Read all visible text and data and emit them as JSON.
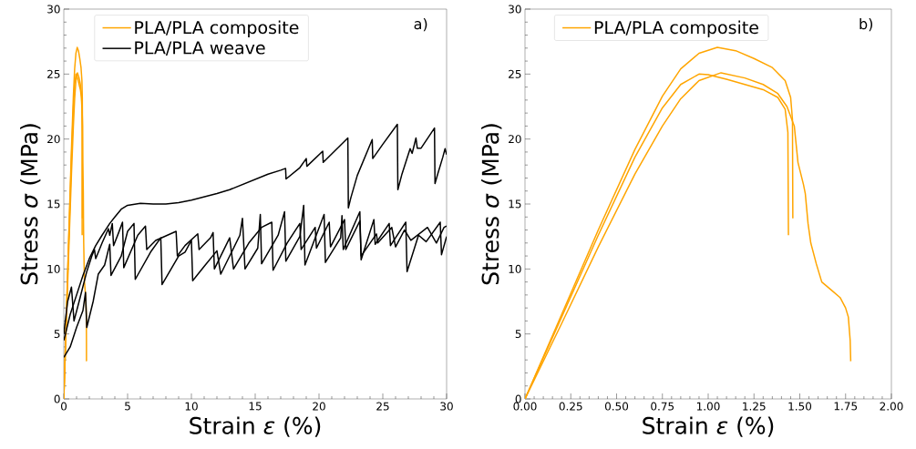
{
  "chart_data": [
    {
      "type": "line",
      "xlabel": "Strain *ε* (%)",
      "ylabel": "Stress *σ* (MPa)",
      "annotations": [
        "a)"
      ],
      "legend": "top left",
      "xlim": [
        0,
        30
      ],
      "ylim": [
        0,
        30
      ],
      "xticks": [
        0,
        5,
        10,
        15,
        20,
        25,
        30
      ],
      "yticks": [
        0,
        5,
        10,
        15,
        20,
        25,
        30
      ],
      "series": [
        {
          "name": "PLA/PLA composite",
          "color": "#ffa500",
          "x": [
            0,
            0.2,
            0.4,
            0.6,
            0.75,
            0.85,
            0.95,
            1.05,
            1.15,
            1.25,
            1.35,
            1.42,
            1.45,
            1.46,
            1.462
          ],
          "values": [
            0,
            6.5,
            13.0,
            19.2,
            23.3,
            25.4,
            26.6,
            27.05,
            26.8,
            26.2,
            25.5,
            24.5,
            23.2,
            21.5,
            13.9
          ]
        },
        {
          "color": "#ffa500",
          "x": [
            0,
            0.2,
            0.4,
            0.6,
            0.75,
            0.85,
            0.95,
            1.0,
            1.1,
            1.2,
            1.3,
            1.38,
            1.42,
            1.435,
            1.438
          ],
          "values": [
            0,
            6.3,
            12.6,
            18.6,
            22.4,
            24.2,
            25.0,
            24.95,
            24.6,
            24.2,
            23.8,
            23.2,
            22.3,
            20.5,
            12.6
          ]
        },
        {
          "color": "#ffa500",
          "x": [
            0,
            0.2,
            0.4,
            0.6,
            0.75,
            0.85,
            0.95,
            1.07,
            1.2,
            1.3,
            1.38,
            1.43,
            1.47,
            1.49,
            1.52,
            1.53,
            1.545,
            1.56,
            1.59,
            1.62,
            1.67,
            1.72,
            1.75,
            1.765,
            1.775,
            1.778
          ],
          "values": [
            0,
            5.8,
            11.7,
            17.3,
            21.0,
            23.1,
            24.5,
            25.1,
            24.7,
            24.2,
            23.5,
            22.5,
            21.0,
            18.2,
            16.5,
            15.8,
            13.5,
            12.0,
            10.4,
            9.0,
            8.4,
            7.8,
            7.0,
            6.3,
            4.5,
            2.9
          ]
        },
        {
          "name": "PLA/PLA weave",
          "color": "#000000",
          "x": [
            0,
            0.5,
            1,
            1.5,
            2,
            2.5,
            3,
            3.6,
            4,
            4.5,
            5,
            6,
            7,
            8,
            9,
            10,
            11,
            12,
            13,
            14,
            15,
            16,
            17,
            17.38,
            17.42,
            18.5,
            19.0,
            19.05,
            20.29,
            20.33,
            22.26,
            22.3,
            22.5,
            23,
            24.17,
            24.21,
            25,
            26.14,
            26.18,
            26.5,
            27.14,
            27.3,
            27.6,
            27.7,
            28,
            29.05,
            29.09,
            29.3,
            29.7,
            29.88,
            30
          ],
          "values": [
            4.5,
            6.5,
            8.0,
            9.5,
            10.8,
            11.8,
            12.6,
            13.5,
            14.0,
            14.6,
            14.9,
            15.05,
            15.0,
            15.0,
            15.1,
            15.3,
            15.55,
            15.8,
            16.1,
            16.5,
            16.9,
            17.3,
            17.6,
            17.74,
            16.93,
            17.8,
            18.5,
            17.9,
            19.07,
            18.2,
            20.08,
            14.7,
            15.5,
            17.2,
            19.96,
            18.5,
            19.6,
            21.13,
            16.1,
            17.3,
            19.26,
            18.9,
            20.08,
            19.3,
            19.3,
            20.85,
            16.58,
            17.3,
            18.6,
            19.26,
            18.8
          ]
        },
        {
          "color": "#000000",
          "x": [
            0,
            0.5,
            1,
            1.5,
            1.7,
            1.8,
            2.3,
            2.7,
            3.2,
            3.6,
            3.7,
            4.5,
            5.0,
            5.5,
            5.6,
            6.8,
            7.6,
            7.7,
            9.0,
            9.5,
            10.0,
            10.1,
            11.0,
            12.0,
            12.3,
            13.8,
            14.0,
            14.2,
            15.2,
            15.4,
            15.5,
            16.8,
            17.3,
            17.4,
            18.5,
            18.8,
            18.9,
            20.4,
            20.5,
            21.7,
            21.8,
            21.9,
            23.2,
            23.3,
            24.3,
            24.4,
            25.5,
            25.6,
            26.8,
            26.9,
            27.8,
            28.4,
            29.5,
            29.6,
            30
          ],
          "values": [
            3.2,
            4.0,
            5.5,
            6.8,
            8.2,
            5.5,
            7.5,
            9.6,
            10.3,
            11.9,
            9.5,
            11.0,
            12.9,
            13.5,
            9.2,
            11.3,
            12.4,
            8.8,
            11.0,
            11.3,
            12.2,
            9.1,
            10.2,
            11.4,
            9.6,
            12.6,
            13.9,
            10.0,
            11.6,
            14.2,
            10.4,
            12.6,
            14.4,
            10.6,
            12.5,
            14.9,
            10.3,
            14.2,
            10.5,
            12.4,
            14.1,
            11.5,
            14.4,
            10.7,
            13.8,
            11.9,
            13.5,
            11.8,
            13.6,
            9.8,
            12.6,
            12.1,
            13.6,
            11.1,
            12.5
          ]
        },
        {
          "color": "#000000",
          "x": [
            0,
            0.3,
            0.6,
            0.8,
            1.2,
            1.8,
            2.2,
            2.4,
            2.5,
            3.0,
            3.5,
            3.6,
            3.8,
            3.9,
            4.3,
            4.6,
            4.7,
            5.8,
            6.4,
            6.5,
            7.2,
            8.8,
            8.9,
            9.5,
            10.5,
            10.6,
            11.5,
            11.7,
            11.8,
            13.0,
            13.3,
            14.5,
            15.5,
            16.3,
            16.4,
            17.5,
            18.5,
            18.6,
            19.7,
            19.8,
            20.8,
            20.9,
            22.0,
            22.1,
            23.2,
            23.3,
            24.5,
            24.6,
            25.7,
            26.0,
            26.7,
            27.2,
            28.5,
            29.2,
            29.8,
            30
          ],
          "values": [
            5.0,
            7.5,
            8.6,
            6.0,
            7.5,
            9.8,
            11.0,
            11.5,
            10.8,
            12.0,
            13.1,
            12.6,
            13.5,
            11.8,
            12.8,
            13.6,
            10.1,
            12.6,
            13.3,
            11.5,
            12.2,
            12.9,
            11.0,
            11.8,
            12.7,
            11.5,
            12.4,
            12.8,
            10.0,
            12.4,
            10.0,
            12.0,
            13.2,
            13.6,
            9.9,
            12.0,
            13.5,
            11.5,
            13.2,
            11.6,
            13.6,
            11.7,
            13.8,
            11.5,
            13.7,
            11.0,
            12.7,
            12.0,
            13.2,
            11.7,
            13.0,
            12.2,
            13.2,
            12.0,
            13.2,
            13.3
          ]
        }
      ]
    },
    {
      "type": "line",
      "xlabel": "Strain *ε* (%)",
      "ylabel": "Stress *σ* (MPa)",
      "annotations": [
        "b)"
      ],
      "legend": "top left",
      "xlim": [
        0,
        2
      ],
      "ylim": [
        0,
        30
      ],
      "xticks": [
        {
          "value": 0,
          "label": "0.00"
        },
        {
          "value": 0.25,
          "label": "0.25"
        },
        {
          "value": 0.5,
          "label": "0.50"
        },
        {
          "value": 0.75,
          "label": "0.75"
        },
        {
          "value": 1,
          "label": "1.00"
        },
        {
          "value": 1.25,
          "label": "1.25"
        },
        {
          "value": 1.5,
          "label": "1.50"
        },
        {
          "value": 1.75,
          "label": "1.75"
        },
        {
          "value": 2,
          "label": "2.00"
        }
      ],
      "yticks": [
        0,
        5,
        10,
        15,
        20,
        25,
        30
      ],
      "series": [
        {
          "name": "PLA/PLA composite",
          "color": "#ffa500",
          "x": [
            0,
            0.2,
            0.4,
            0.6,
            0.75,
            0.85,
            0.95,
            1.05,
            1.15,
            1.25,
            1.35,
            1.42,
            1.45,
            1.46,
            1.462
          ],
          "values": [
            0,
            6.5,
            13.0,
            19.2,
            23.3,
            25.4,
            26.6,
            27.05,
            26.8,
            26.2,
            25.5,
            24.5,
            23.2,
            21.5,
            13.9
          ]
        },
        {
          "color": "#ffa500",
          "x": [
            0,
            0.2,
            0.4,
            0.6,
            0.75,
            0.85,
            0.95,
            1.0,
            1.1,
            1.2,
            1.3,
            1.38,
            1.42,
            1.435,
            1.438
          ],
          "values": [
            0,
            6.3,
            12.6,
            18.6,
            22.4,
            24.2,
            25.0,
            24.95,
            24.6,
            24.2,
            23.8,
            23.2,
            22.3,
            20.5,
            12.6
          ]
        },
        {
          "color": "#ffa500",
          "x": [
            0,
            0.2,
            0.4,
            0.6,
            0.75,
            0.85,
            0.95,
            1.07,
            1.2,
            1.3,
            1.38,
            1.43,
            1.47,
            1.49,
            1.52,
            1.53,
            1.545,
            1.56,
            1.59,
            1.62,
            1.67,
            1.72,
            1.75,
            1.765,
            1.775,
            1.778
          ],
          "values": [
            0,
            5.8,
            11.7,
            17.3,
            21.0,
            23.1,
            24.5,
            25.1,
            24.7,
            24.2,
            23.5,
            22.5,
            21.0,
            18.2,
            16.5,
            15.8,
            13.5,
            12.0,
            10.4,
            9.0,
            8.4,
            7.8,
            7.0,
            6.3,
            4.5,
            2.9
          ]
        }
      ]
    }
  ]
}
